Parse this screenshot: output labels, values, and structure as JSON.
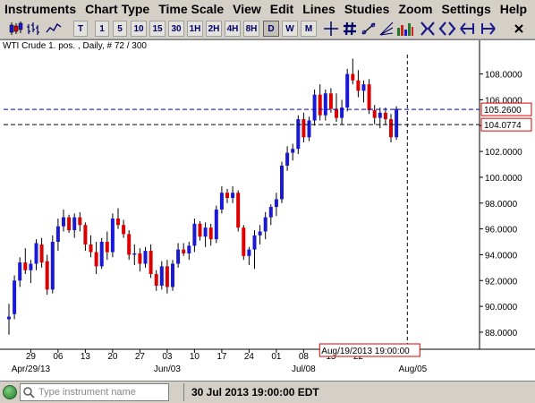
{
  "menu": [
    "Instruments",
    "Chart Type",
    "Time Scale",
    "View",
    "Edit",
    "Lines",
    "Studies",
    "Zoom",
    "Settings",
    "Help"
  ],
  "toolbar": {
    "timeframes": [
      "T",
      "1",
      "5",
      "10",
      "15",
      "30",
      "1H",
      "2H",
      "4H",
      "8H",
      "D",
      "W",
      "M"
    ],
    "active_timeframe": "D"
  },
  "chart_title": "WTI Crude 1. pos. , Daily, # 72 / 300",
  "status": {
    "search_placeholder": "Type instrument name",
    "datetime": "30 Jul 2013 19:00:00 EDT"
  },
  "colors": {
    "up": "#1a1ad6",
    "down": "#dd0000",
    "cursor_label": "#dd0000",
    "hline": "#0000cc"
  },
  "chart_data": {
    "type": "candlestick",
    "title": "WTI Crude 1. pos. , Daily, # 72 / 300",
    "y_ticks": [
      "88.0000",
      "90.0000",
      "92.0000",
      "94.0000",
      "96.0000",
      "98.0000",
      "100.0000",
      "102.0000",
      "104.0000",
      "106.0000",
      "108.0000"
    ],
    "ylim": [
      87.3,
      109.5
    ],
    "x_ticks": [
      {
        "label": "29",
        "index": 4
      },
      {
        "label": "06",
        "index": 9
      },
      {
        "label": "13",
        "index": 14
      },
      {
        "label": "20",
        "index": 19
      },
      {
        "label": "27",
        "index": 24
      },
      {
        "label": "03",
        "index": 29
      },
      {
        "label": "10",
        "index": 34
      },
      {
        "label": "17",
        "index": 39
      },
      {
        "label": "24",
        "index": 44
      },
      {
        "label": "01",
        "index": 49
      },
      {
        "label": "08",
        "index": 54
      },
      {
        "label": "15",
        "index": 59
      },
      {
        "label": "22",
        "index": 64
      }
    ],
    "month_labels": [
      {
        "label": "Apr/29/13",
        "index": 4
      },
      {
        "label": "Jun/03",
        "index": 29
      },
      {
        "label": "Jul/08",
        "index": 54
      },
      {
        "label": "Aug/05",
        "index": 74
      }
    ],
    "grid": false,
    "price_lines": [
      {
        "value": 105.26,
        "label": "105.2600",
        "style": "dashed-blue"
      },
      {
        "value": 104.0774,
        "label": "104.0774",
        "style": "dashed-black"
      }
    ],
    "cursor": {
      "index": 73,
      "label": "Aug/19/2013 19:00:00"
    },
    "candles": [
      {
        "o": 89.0,
        "h": 90.2,
        "l": 87.8,
        "c": 89.2
      },
      {
        "o": 89.4,
        "h": 92.4,
        "l": 89.0,
        "c": 92.0
      },
      {
        "o": 92.0,
        "h": 93.8,
        "l": 91.5,
        "c": 93.4
      },
      {
        "o": 93.4,
        "h": 94.5,
        "l": 92.5,
        "c": 92.8
      },
      {
        "o": 92.8,
        "h": 93.6,
        "l": 91.8,
        "c": 93.3
      },
      {
        "o": 93.3,
        "h": 95.2,
        "l": 92.8,
        "c": 94.9
      },
      {
        "o": 94.8,
        "h": 95.3,
        "l": 93.0,
        "c": 93.4
      },
      {
        "o": 93.5,
        "h": 94.0,
        "l": 90.9,
        "c": 91.3
      },
      {
        "o": 91.3,
        "h": 95.5,
        "l": 91.0,
        "c": 95.0
      },
      {
        "o": 95.0,
        "h": 96.8,
        "l": 94.3,
        "c": 96.2
      },
      {
        "o": 96.2,
        "h": 97.5,
        "l": 95.8,
        "c": 96.9
      },
      {
        "o": 96.9,
        "h": 97.1,
        "l": 95.7,
        "c": 95.9
      },
      {
        "o": 95.9,
        "h": 97.2,
        "l": 95.3,
        "c": 96.9
      },
      {
        "o": 96.9,
        "h": 97.3,
        "l": 95.8,
        "c": 96.3
      },
      {
        "o": 96.3,
        "h": 96.5,
        "l": 94.3,
        "c": 94.8
      },
      {
        "o": 94.8,
        "h": 95.5,
        "l": 93.8,
        "c": 94.2
      },
      {
        "o": 94.2,
        "h": 95.0,
        "l": 92.5,
        "c": 93.1
      },
      {
        "o": 93.1,
        "h": 95.3,
        "l": 92.9,
        "c": 95.0
      },
      {
        "o": 95.0,
        "h": 95.8,
        "l": 93.6,
        "c": 94.2
      },
      {
        "o": 94.2,
        "h": 97.2,
        "l": 93.8,
        "c": 96.8
      },
      {
        "o": 96.8,
        "h": 97.6,
        "l": 96.0,
        "c": 96.3
      },
      {
        "o": 96.3,
        "h": 96.7,
        "l": 95.3,
        "c": 95.6
      },
      {
        "o": 95.6,
        "h": 95.9,
        "l": 93.6,
        "c": 94.0
      },
      {
        "o": 94.0,
        "h": 94.8,
        "l": 93.2,
        "c": 94.1
      },
      {
        "o": 94.1,
        "h": 94.5,
        "l": 92.7,
        "c": 93.3
      },
      {
        "o": 93.3,
        "h": 94.6,
        "l": 93.0,
        "c": 94.3
      },
      {
        "o": 94.3,
        "h": 94.8,
        "l": 92.2,
        "c": 92.5
      },
      {
        "o": 92.5,
        "h": 92.8,
        "l": 91.2,
        "c": 91.6
      },
      {
        "o": 91.6,
        "h": 93.5,
        "l": 91.3,
        "c": 93.1
      },
      {
        "o": 93.1,
        "h": 93.6,
        "l": 91.0,
        "c": 91.5
      },
      {
        "o": 91.5,
        "h": 93.6,
        "l": 91.2,
        "c": 93.3
      },
      {
        "o": 93.3,
        "h": 94.9,
        "l": 93.0,
        "c": 94.4
      },
      {
        "o": 94.4,
        "h": 94.9,
        "l": 93.9,
        "c": 94.1
      },
      {
        "o": 94.1,
        "h": 95.0,
        "l": 93.6,
        "c": 94.7
      },
      {
        "o": 94.7,
        "h": 96.8,
        "l": 94.2,
        "c": 96.4
      },
      {
        "o": 96.4,
        "h": 96.6,
        "l": 95.1,
        "c": 95.4
      },
      {
        "o": 95.4,
        "h": 96.5,
        "l": 94.6,
        "c": 96.1
      },
      {
        "o": 96.1,
        "h": 96.4,
        "l": 94.7,
        "c": 95.2
      },
      {
        "o": 95.2,
        "h": 97.8,
        "l": 94.9,
        "c": 97.5
      },
      {
        "o": 97.5,
        "h": 99.3,
        "l": 97.2,
        "c": 98.8
      },
      {
        "o": 98.8,
        "h": 99.1,
        "l": 98.0,
        "c": 98.4
      },
      {
        "o": 98.4,
        "h": 99.3,
        "l": 98.0,
        "c": 98.8
      },
      {
        "o": 98.8,
        "h": 99.0,
        "l": 95.8,
        "c": 96.1
      },
      {
        "o": 96.1,
        "h": 96.3,
        "l": 93.6,
        "c": 93.9
      },
      {
        "o": 93.9,
        "h": 94.6,
        "l": 93.2,
        "c": 94.4
      },
      {
        "o": 94.4,
        "h": 95.9,
        "l": 92.9,
        "c": 95.5
      },
      {
        "o": 95.5,
        "h": 96.3,
        "l": 94.8,
        "c": 95.8
      },
      {
        "o": 95.8,
        "h": 97.3,
        "l": 95.2,
        "c": 96.9
      },
      {
        "o": 96.9,
        "h": 97.9,
        "l": 96.3,
        "c": 97.7
      },
      {
        "o": 97.7,
        "h": 98.8,
        "l": 97.0,
        "c": 98.3
      },
      {
        "o": 98.3,
        "h": 101.2,
        "l": 98.0,
        "c": 100.9
      },
      {
        "o": 100.9,
        "h": 102.4,
        "l": 100.5,
        "c": 101.9
      },
      {
        "o": 101.9,
        "h": 102.6,
        "l": 101.3,
        "c": 102.2
      },
      {
        "o": 102.2,
        "h": 104.8,
        "l": 101.8,
        "c": 104.5
      },
      {
        "o": 104.5,
        "h": 105.0,
        "l": 102.7,
        "c": 103.1
      },
      {
        "o": 103.1,
        "h": 104.7,
        "l": 102.8,
        "c": 104.4
      },
      {
        "o": 104.4,
        "h": 106.8,
        "l": 104.0,
        "c": 106.4
      },
      {
        "o": 106.4,
        "h": 107.2,
        "l": 104.4,
        "c": 104.8
      },
      {
        "o": 104.8,
        "h": 106.8,
        "l": 104.4,
        "c": 106.5
      },
      {
        "o": 106.5,
        "h": 106.9,
        "l": 105.0,
        "c": 105.3
      },
      {
        "o": 105.3,
        "h": 106.5,
        "l": 104.3,
        "c": 104.6
      },
      {
        "o": 104.6,
        "h": 106.0,
        "l": 104.1,
        "c": 105.4
      },
      {
        "o": 105.4,
        "h": 108.4,
        "l": 105.1,
        "c": 108.0
      },
      {
        "o": 108.0,
        "h": 109.2,
        "l": 107.2,
        "c": 107.5
      },
      {
        "o": 107.5,
        "h": 108.3,
        "l": 106.2,
        "c": 106.7
      },
      {
        "o": 106.7,
        "h": 107.5,
        "l": 105.8,
        "c": 107.2
      },
      {
        "o": 107.2,
        "h": 107.6,
        "l": 104.9,
        "c": 105.2
      },
      {
        "o": 105.2,
        "h": 105.6,
        "l": 104.1,
        "c": 104.6
      },
      {
        "o": 104.6,
        "h": 105.4,
        "l": 103.8,
        "c": 105.0
      },
      {
        "o": 105.0,
        "h": 105.4,
        "l": 104.1,
        "c": 104.5
      },
      {
        "o": 104.5,
        "h": 104.9,
        "l": 102.7,
        "c": 103.1
      },
      {
        "o": 103.1,
        "h": 105.5,
        "l": 102.9,
        "c": 105.3
      }
    ]
  }
}
